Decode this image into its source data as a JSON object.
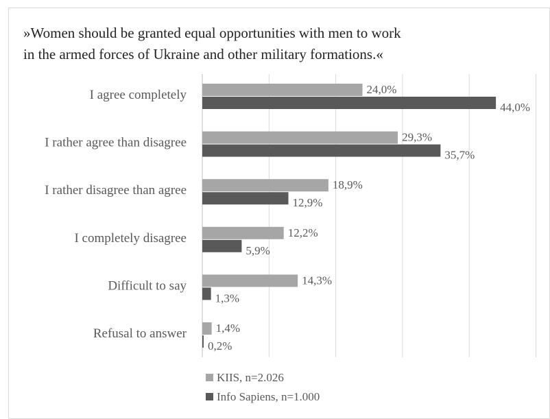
{
  "title_lines": [
    "»Women should be granted equal opportunities with men to work",
    "in the armed forces of Ukraine and other military formations.«"
  ],
  "chart_data": {
    "type": "bar",
    "orientation": "horizontal",
    "title": "»Women should be granted equal opportunities with men to work in the armed forces of Ukraine and other military formations.«",
    "categories": [
      "I agree completely",
      "I rather agree than disagree",
      "I rather disagree than agree",
      "I completely disagree",
      "Difficult to say",
      "Refusal to answer"
    ],
    "series": [
      {
        "name": "KIIS, n=2.026",
        "color": "#a6a6a6",
        "values": [
          24.0,
          29.3,
          18.9,
          12.2,
          14.3,
          1.4
        ],
        "labels": [
          "24,0%",
          "29,3%",
          "18,9%",
          "12,2%",
          "14,3%",
          "1,4%"
        ]
      },
      {
        "name": "Info Sapiens, n=1.000",
        "color": "#595959",
        "values": [
          44.0,
          35.7,
          12.9,
          5.9,
          1.3,
          0.2
        ],
        "labels": [
          "44,0%",
          "35,7%",
          "12,9%",
          "5,9%",
          "1,3%",
          "0,2%"
        ]
      }
    ],
    "xlim": [
      0,
      50
    ],
    "grid": true,
    "legend_position": "bottom",
    "value_unit": "%"
  }
}
